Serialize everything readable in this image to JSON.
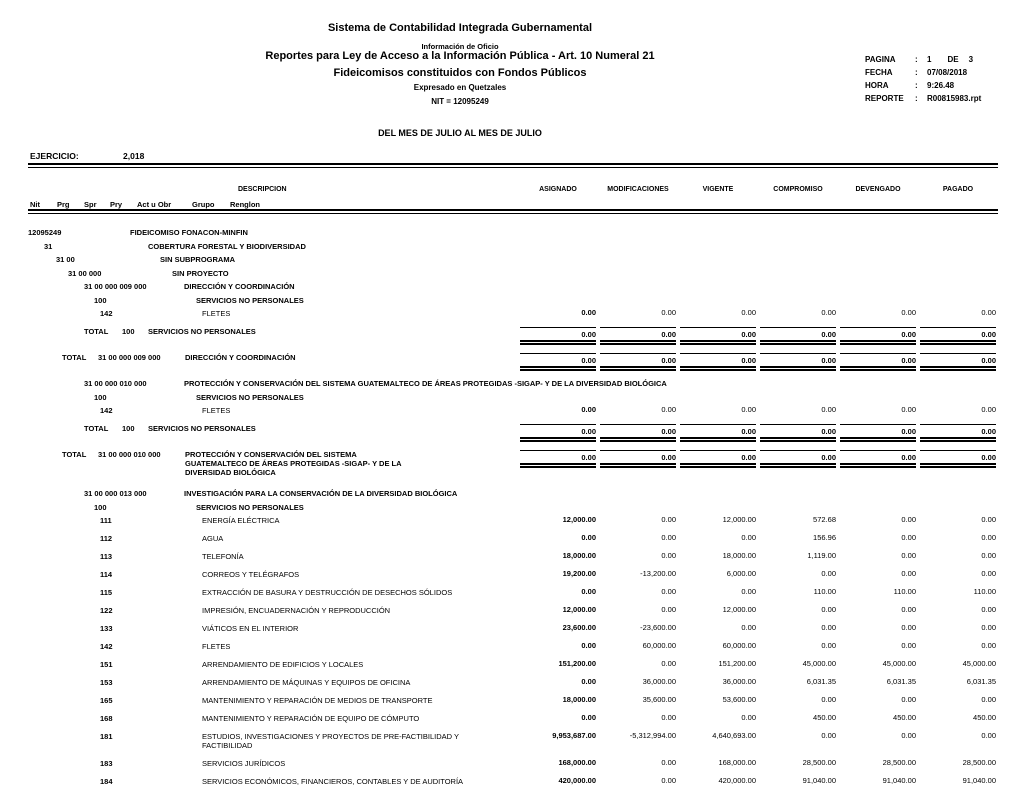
{
  "header": {
    "title1": "Sistema de Contabilidad Integrada Gubernamental",
    "subtitle_small": "Información de Oficio",
    "title2": "Reportes para Ley de Acceso a la Información Pública - Art. 10 Numeral 21",
    "title3": "Fideicomisos constituidos con Fondos Públicos",
    "currency_note": "Expresado en Quetzales",
    "nit": "NIT = 12095249",
    "period": "DEL MES DE JULIO AL MES DE JULIO"
  },
  "meta": {
    "pagina_label": "PAGINA",
    "colon": ":",
    "pagina": "1",
    "de_label": "DE",
    "pagina_total": "3",
    "fecha_label": "FECHA",
    "fecha": "07/08/2018",
    "hora_label": "HORA",
    "hora": "9:26.48",
    "reporte_label": "REPORTE",
    "reporte": "R00815983.rpt"
  },
  "ejercicio": {
    "label": "EJERCICIO:",
    "value": "2,018"
  },
  "columns": {
    "descripcion": "DESCRIPCION",
    "code_headers": [
      "Nit",
      "Prg",
      "Spr",
      "Pry",
      "Act u Obr",
      "Grupo",
      "Renglon"
    ],
    "numeric": [
      "ASIGNADO",
      "MODIFICACIONES",
      "VIGENTE",
      "COMPROMISO",
      "DEVENGADO",
      "PAGADO"
    ]
  },
  "table": {
    "total_label": "TOTAL",
    "rows": [
      {
        "t": "i",
        "l": 0,
        "code": "12095249",
        "desc": "FIDEICOMISO FONACON-MINFIN"
      },
      {
        "t": "i",
        "l": 1,
        "code": "31",
        "desc": "COBERTURA FORESTAL Y BIODIVERSIDAD"
      },
      {
        "t": "i",
        "l": 2,
        "code": "31 00",
        "desc": "SIN SUBPROGRAMA"
      },
      {
        "t": "i",
        "l": 3,
        "code": "31 00 000",
        "desc": "SIN PROYECTO"
      },
      {
        "t": "i",
        "l": 4,
        "code": "31 00 000 009 000",
        "desc": "DIRECCIÓN Y COORDINACIÓN"
      },
      {
        "t": "i",
        "l": 5,
        "code": "100",
        "desc": "SERVICIOS NO PERSONALES"
      },
      {
        "t": "i",
        "l": 6,
        "code": "142",
        "desc": "FLETES",
        "vals": [
          "0.00",
          "0.00",
          "0.00",
          "0.00",
          "0.00",
          "0.00"
        ]
      },
      {
        "t": "tg",
        "code": "100",
        "desc": "SERVICIOS NO PERSONALES",
        "vals": [
          "0.00",
          "0.00",
          "0.00",
          "0.00",
          "0.00",
          "0.00"
        ]
      },
      {
        "t": "ta",
        "code": "31 00 000 009 000",
        "desc": "DIRECCIÓN Y COORDINACIÓN",
        "vals": [
          "0.00",
          "0.00",
          "0.00",
          "0.00",
          "0.00",
          "0.00"
        ]
      },
      {
        "t": "i",
        "l": 4,
        "code": "31 00 000 010 000",
        "desc": "PROTECCIÓN Y CONSERVACIÓN DEL SISTEMA GUATEMALTECO DE ÁREAS PROTEGIDAS -SIGAP- Y DE LA DIVERSIDAD BIOLÓGICA"
      },
      {
        "t": "i",
        "l": 5,
        "code": "100",
        "desc": "SERVICIOS NO PERSONALES"
      },
      {
        "t": "i",
        "l": 6,
        "code": "142",
        "desc": "FLETES",
        "vals": [
          "0.00",
          "0.00",
          "0.00",
          "0.00",
          "0.00",
          "0.00"
        ]
      },
      {
        "t": "tg",
        "code": "100",
        "desc": "SERVICIOS NO PERSONALES",
        "vals": [
          "0.00",
          "0.00",
          "0.00",
          "0.00",
          "0.00",
          "0.00"
        ]
      },
      {
        "t": "ta",
        "code": "31 00 000 010 000",
        "desc": "PROTECCIÓN Y CONSERVACIÓN DEL SISTEMA GUATEMALTECO DE ÁREAS PROTEGIDAS -SIGAP- Y DE LA DIVERSIDAD BIOLÓGICA",
        "vals": [
          "0.00",
          "0.00",
          "0.00",
          "0.00",
          "0.00",
          "0.00"
        ]
      },
      {
        "t": "i",
        "l": 4,
        "code": "31 00 000 013 000",
        "desc": "INVESTIGACIÓN PARA LA CONSERVACIÓN DE LA DIVERSIDAD BIOLÓGICA"
      },
      {
        "t": "i",
        "l": 5,
        "code": "100",
        "desc": "SERVICIOS NO PERSONALES"
      },
      {
        "t": "i",
        "l": 6,
        "code": "111",
        "desc": "ENERGÍA ELÉCTRICA",
        "vals": [
          "12,000.00",
          "0.00",
          "12,000.00",
          "572.68",
          "0.00",
          "0.00"
        ]
      },
      {
        "t": "i",
        "l": 6,
        "code": "112",
        "desc": "AGUA",
        "vals": [
          "0.00",
          "0.00",
          "0.00",
          "156.96",
          "0.00",
          "0.00"
        ]
      },
      {
        "t": "i",
        "l": 6,
        "code": "113",
        "desc": "TELEFONÍA",
        "vals": [
          "18,000.00",
          "0.00",
          "18,000.00",
          "1,119.00",
          "0.00",
          "0.00"
        ]
      },
      {
        "t": "i",
        "l": 6,
        "code": "114",
        "desc": "CORREOS Y TELÉGRAFOS",
        "vals": [
          "19,200.00",
          "-13,200.00",
          "6,000.00",
          "0.00",
          "0.00",
          "0.00"
        ]
      },
      {
        "t": "i",
        "l": 6,
        "code": "115",
        "desc": "EXTRACCIÓN DE BASURA Y DESTRUCCIÓN DE DESECHOS SÓLIDOS",
        "vals": [
          "0.00",
          "0.00",
          "0.00",
          "110.00",
          "110.00",
          "110.00"
        ]
      },
      {
        "t": "i",
        "l": 6,
        "code": "122",
        "desc": "IMPRESIÓN, ENCUADERNACIÓN Y REPRODUCCIÓN",
        "vals": [
          "12,000.00",
          "0.00",
          "12,000.00",
          "0.00",
          "0.00",
          "0.00"
        ]
      },
      {
        "t": "i",
        "l": 6,
        "code": "133",
        "desc": "VIÁTICOS EN EL INTERIOR",
        "vals": [
          "23,600.00",
          "-23,600.00",
          "0.00",
          "0.00",
          "0.00",
          "0.00"
        ]
      },
      {
        "t": "i",
        "l": 6,
        "code": "142",
        "desc": "FLETES",
        "vals": [
          "0.00",
          "60,000.00",
          "60,000.00",
          "0.00",
          "0.00",
          "0.00"
        ]
      },
      {
        "t": "i",
        "l": 6,
        "code": "151",
        "desc": "ARRENDAMIENTO DE EDIFICIOS Y LOCALES",
        "vals": [
          "151,200.00",
          "0.00",
          "151,200.00",
          "45,000.00",
          "45,000.00",
          "45,000.00"
        ]
      },
      {
        "t": "i",
        "l": 6,
        "code": "153",
        "desc": "ARRENDAMIENTO DE MÁQUINAS Y EQUIPOS DE OFICINA",
        "vals": [
          "0.00",
          "36,000.00",
          "36,000.00",
          "6,031.35",
          "6,031.35",
          "6,031.35"
        ]
      },
      {
        "t": "i",
        "l": 6,
        "code": "165",
        "desc": "MANTENIMIENTO Y REPARACIÓN DE MEDIOS DE TRANSPORTE",
        "vals": [
          "18,000.00",
          "35,600.00",
          "53,600.00",
          "0.00",
          "0.00",
          "0.00"
        ]
      },
      {
        "t": "i",
        "l": 6,
        "code": "168",
        "desc": "MANTENIMIENTO Y REPARACIÓN DE EQUIPO DE CÓMPUTO",
        "vals": [
          "0.00",
          "0.00",
          "0.00",
          "450.00",
          "450.00",
          "450.00"
        ]
      },
      {
        "t": "i",
        "l": 6,
        "code": "181",
        "desc": "ESTUDIOS, INVESTIGACIONES Y PROYECTOS DE PRE-FACTIBILIDAD Y FACTIBILIDAD",
        "vals": [
          "9,953,687.00",
          "-5,312,994.00",
          "4,640,693.00",
          "0.00",
          "0.00",
          "0.00"
        ]
      },
      {
        "t": "i",
        "l": 6,
        "code": "183",
        "desc": "SERVICIOS JURÍDICOS",
        "vals": [
          "168,000.00",
          "0.00",
          "168,000.00",
          "28,500.00",
          "28,500.00",
          "28,500.00"
        ]
      },
      {
        "t": "i",
        "l": 6,
        "code": "184",
        "desc": "SERVICIOS ECONÓMICOS, FINANCIEROS, CONTABLES Y DE AUDITORÍA",
        "vals": [
          "420,000.00",
          "0.00",
          "420,000.00",
          "91,040.00",
          "91,040.00",
          "91,040.00"
        ]
      }
    ]
  }
}
